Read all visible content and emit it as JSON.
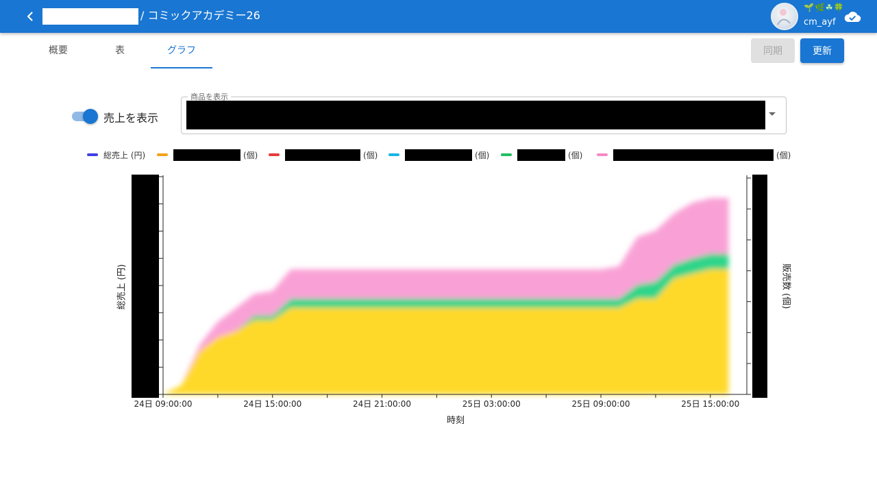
{
  "header": {
    "title": "/ コミックアカデミー26",
    "user": {
      "name": "cm_ayf",
      "decoration": "🌱🌿☘🍀"
    }
  },
  "tabs": [
    {
      "label": "概要",
      "active": false
    },
    {
      "label": "表",
      "active": false
    },
    {
      "label": "グラフ",
      "active": true
    }
  ],
  "actions": {
    "sync_label": "同期",
    "sync_disabled": true,
    "update_label": "更新"
  },
  "controls": {
    "show_sales_label": "売上を表示",
    "show_sales_on": true,
    "product_select_label": "商品を表示"
  },
  "legend": [
    {
      "label": "総売上 (円)",
      "color": "#3f3fe0"
    },
    {
      "label": "(個)",
      "color": "#f4a21b"
    },
    {
      "label": "(個)",
      "color": "#e83b3b"
    },
    {
      "label": "(個)",
      "color": "#18b4e8"
    },
    {
      "label": "(個)",
      "color": "#1fbf62"
    },
    {
      "label": "(個)",
      "color": "#f58ac5"
    }
  ],
  "chart_data": {
    "type": "area",
    "stacked": true,
    "xlabel": "時刻",
    "ylabel_left": "総売上 (円)",
    "ylabel_right": "販売数 (個)",
    "x_ticks": [
      "24日 09:00:00",
      "24日 15:00:00",
      "24日 21:00:00",
      "25日 03:00:00",
      "25日 09:00:00",
      "25日 15:00:00"
    ],
    "x_hours": [
      0,
      1,
      2,
      3,
      4,
      5,
      6,
      7,
      8,
      9,
      10,
      11,
      12,
      13,
      14,
      15,
      16,
      17,
      18,
      19,
      20,
      21,
      22,
      23,
      24,
      25,
      26,
      27,
      28,
      29,
      30,
      31
    ],
    "x_origin_label": "24日 09:00:00",
    "series": [
      {
        "color": "#ffd92a",
        "values": [
          0,
          0.6,
          2.8,
          3.7,
          4.1,
          4.8,
          4.8,
          5.6,
          5.6,
          5.6,
          5.6,
          5.6,
          5.6,
          5.6,
          5.6,
          5.6,
          5.6,
          5.6,
          5.6,
          5.6,
          5.6,
          5.6,
          5.6,
          5.6,
          5.6,
          5.6,
          6.2,
          6.2,
          7.5,
          7.8,
          8.1,
          8.1
        ]
      },
      {
        "color": "#2ed58a",
        "values": [
          0,
          0,
          0,
          0,
          0,
          0.3,
          0.3,
          0.6,
          0.6,
          0.6,
          0.6,
          0.6,
          0.6,
          0.6,
          0.6,
          0.6,
          0.6,
          0.6,
          0.6,
          0.6,
          0.6,
          0.6,
          0.6,
          0.6,
          0.6,
          0.6,
          0.9,
          1.1,
          0.9,
          1.0,
          1.0,
          1.0
        ]
      },
      {
        "color": "#f9a1d6",
        "values": [
          0,
          0,
          0.4,
          1.0,
          1.5,
          1.4,
          1.6,
          1.9,
          1.9,
          1.9,
          1.9,
          1.9,
          1.9,
          1.9,
          1.9,
          1.9,
          1.9,
          1.9,
          1.9,
          1.9,
          1.9,
          1.9,
          1.9,
          1.9,
          1.9,
          2.1,
          3.1,
          3.3,
          3.3,
          3.6,
          3.6,
          3.6
        ]
      }
    ],
    "ylim_right": [
      0,
      14
    ]
  }
}
